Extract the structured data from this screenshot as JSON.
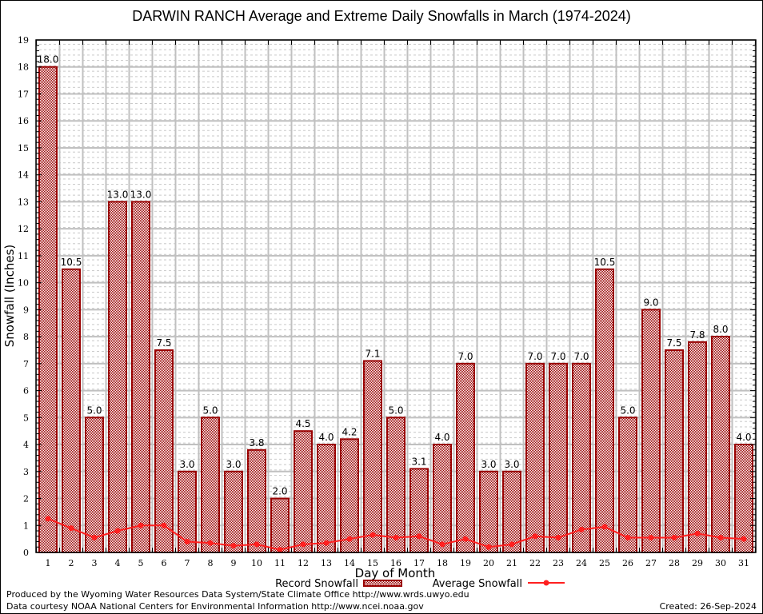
{
  "chart_data": {
    "type": "bar",
    "title": "DARWIN RANCH Average and Extreme Daily Snowfalls in March (1974-2024)",
    "xlabel": "Day of Month",
    "ylabel": "Snowfall (Inches)",
    "ylim": [
      0,
      19
    ],
    "yticks": [
      0,
      1,
      2,
      3,
      4,
      5,
      6,
      7,
      8,
      9,
      10,
      11,
      12,
      13,
      14,
      15,
      16,
      17,
      18,
      19
    ],
    "categories": [
      1,
      2,
      3,
      4,
      5,
      6,
      7,
      8,
      9,
      10,
      11,
      12,
      13,
      14,
      15,
      16,
      17,
      18,
      19,
      20,
      21,
      22,
      23,
      24,
      25,
      26,
      27,
      28,
      29,
      30,
      31
    ],
    "grid": true,
    "legend_position": "bottom-center",
    "series": [
      {
        "name": "Record Snowfall",
        "kind": "bar",
        "color": "#990000",
        "values": [
          18.0,
          10.5,
          5.0,
          13.0,
          13.0,
          7.5,
          3.0,
          5.0,
          3.0,
          3.8,
          2.0,
          4.5,
          4.0,
          4.2,
          7.1,
          5.0,
          3.1,
          4.0,
          7.0,
          3.0,
          3.0,
          7.0,
          7.0,
          7.0,
          10.5,
          5.0,
          9.0,
          7.5,
          7.8,
          8.0,
          4.0
        ],
        "labels": [
          "18.0",
          "10.5",
          "5.0",
          "13.0",
          "13.0",
          "7.5",
          "3.0",
          "5.0",
          "3.0",
          "3.8",
          "2.0",
          "4.5",
          "4.0",
          "4.2",
          "7.1",
          "5.0",
          "3.1",
          "4.0",
          "7.0",
          "3.0",
          "3.0",
          "7.0",
          "7.0",
          "7.0",
          "10.5",
          "5.0",
          "9.0",
          "7.5",
          "7.8",
          "8.0",
          "4.0"
        ]
      },
      {
        "name": "Average Snowfall",
        "kind": "line",
        "color": "#ff2020",
        "values": [
          1.25,
          0.9,
          0.55,
          0.8,
          1.0,
          1.0,
          0.4,
          0.35,
          0.25,
          0.3,
          0.1,
          0.3,
          0.35,
          0.5,
          0.65,
          0.55,
          0.6,
          0.3,
          0.5,
          0.2,
          0.3,
          0.6,
          0.55,
          0.85,
          0.95,
          0.55,
          0.55,
          0.55,
          0.7,
          0.55,
          0.5
        ]
      }
    ]
  },
  "footer": {
    "line1": "Produced by the Wyoming Water Resources Data System/State Climate Office http://www.wrds.uwyo.edu",
    "line2": "Data courtesy NOAA National Centers for Environmental Information http://www.ncei.noaa.gov",
    "created": "Created:  26-Sep-2024"
  }
}
